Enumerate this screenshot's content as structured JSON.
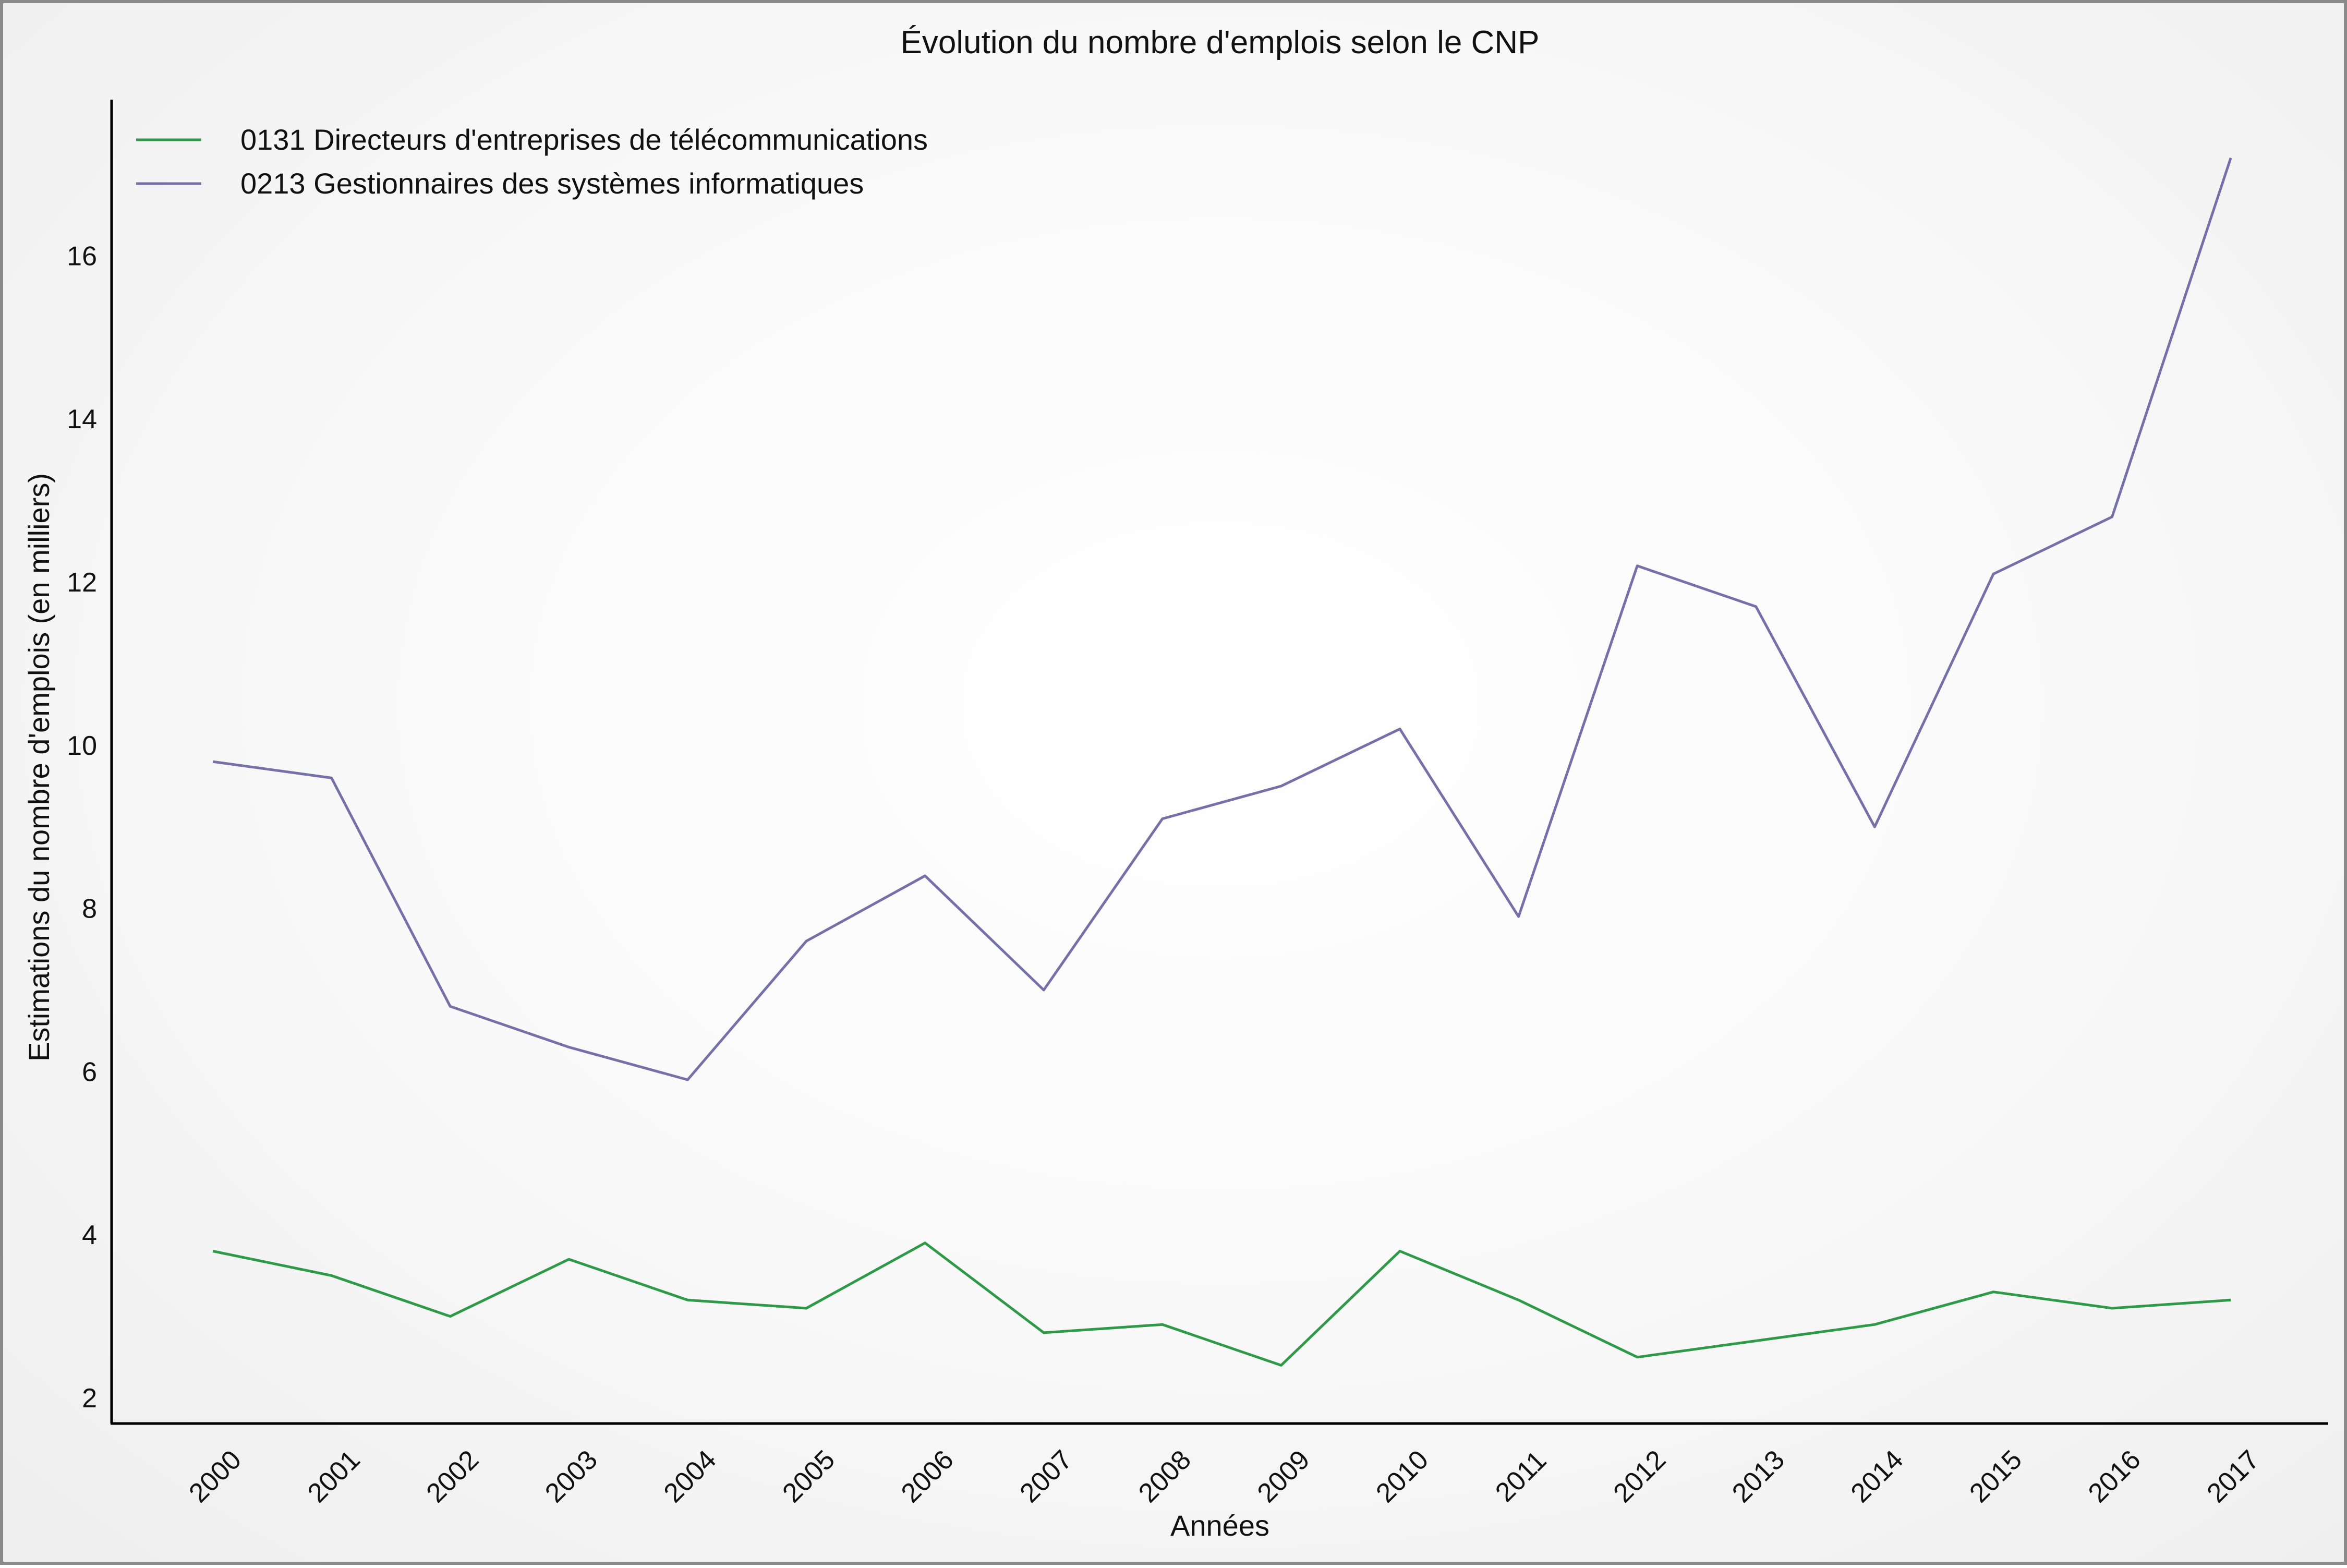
{
  "chart_data": {
    "type": "line",
    "title": "Évolution du nombre d'emplois selon le CNP",
    "xlabel": "Années",
    "ylabel": "Estimations du nombre d'emplois (en milliers)",
    "x": [
      2000,
      2001,
      2002,
      2003,
      2004,
      2005,
      2006,
      2007,
      2008,
      2009,
      2010,
      2011,
      2012,
      2013,
      2014,
      2015,
      2016,
      2017
    ],
    "xtick_labels": [
      "2000",
      "2001",
      "2002",
      "2003",
      "2004",
      "2005",
      "2006",
      "2007",
      "2008",
      "2009",
      "2010",
      "2011",
      "2012",
      "2013",
      "2014",
      "2015",
      "2016",
      "2017"
    ],
    "yticks": [
      2,
      4,
      6,
      8,
      10,
      12,
      14,
      16
    ],
    "ylim": [
      1.7,
      17.5
    ],
    "grid": false,
    "legend": "top-left",
    "series": [
      {
        "name": "0131 Directeurs d'entreprises de télécommunications",
        "color": "#2e9a48",
        "values": [
          3.8,
          3.5,
          3.0,
          3.7,
          3.2,
          3.1,
          3.9,
          2.8,
          2.9,
          2.4,
          3.8,
          3.2,
          2.5,
          2.7,
          2.9,
          3.3,
          3.1,
          3.2
        ]
      },
      {
        "name": "0213 Gestionnaires des systèmes informatiques",
        "color": "#7570a8",
        "values": [
          9.8,
          9.6,
          6.8,
          6.3,
          5.9,
          7.6,
          8.4,
          7.0,
          9.1,
          9.5,
          10.2,
          7.9,
          12.2,
          11.7,
          9.0,
          12.1,
          12.8,
          17.2
        ]
      }
    ]
  }
}
